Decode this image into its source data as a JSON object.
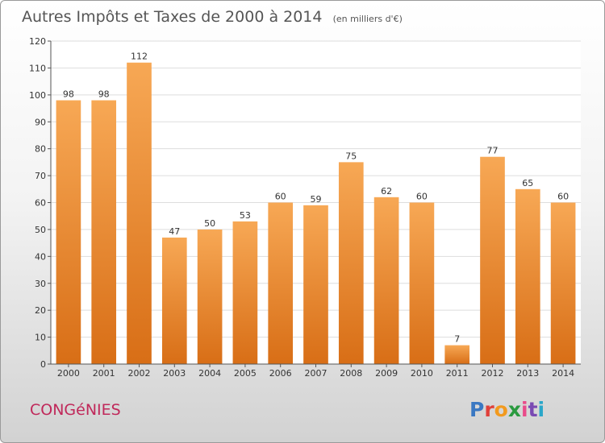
{
  "header": {
    "title": "Autres Impôts et Taxes de 2000 à 2014",
    "unit": "(en milliers d'€)"
  },
  "footer": {
    "commune": "CONGéNIES",
    "brand": "Proxiti",
    "brand_colors": [
      "#3a78c2",
      "#e0403a",
      "#f29a1e",
      "#2a9a3f",
      "#e94b8a",
      "#7a4ab3",
      "#2aa7c9"
    ]
  },
  "colors": {
    "bar_top": "#f7a855",
    "bar_bottom": "#d86e16",
    "grid": "#dddddd",
    "axis": "#555555"
  },
  "chart_data": {
    "type": "bar",
    "title": "Autres Impôts et Taxes de 2000 à 2014",
    "subtitle": "(en milliers d'€)",
    "xlabel": "",
    "ylabel": "",
    "categories": [
      "2000",
      "2001",
      "2002",
      "2003",
      "2004",
      "2005",
      "2006",
      "2007",
      "2008",
      "2009",
      "2010",
      "2011",
      "2012",
      "2013",
      "2014"
    ],
    "values": [
      98,
      98,
      112,
      47,
      50,
      53,
      60,
      59,
      75,
      62,
      60,
      7,
      77,
      65,
      60
    ],
    "ylim": [
      0,
      120
    ],
    "yticks": [
      0,
      10,
      20,
      30,
      40,
      50,
      60,
      70,
      80,
      90,
      100,
      110,
      120
    ],
    "grid": true,
    "legend": "none"
  }
}
